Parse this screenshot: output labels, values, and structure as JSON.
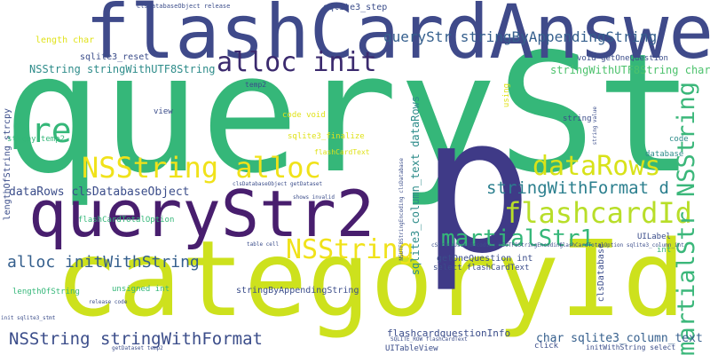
{
  "word_cloud": {
    "palette": {
      "navy": "#3b4d8a",
      "indigo": "#3f3a87",
      "purple": "#481e6e",
      "teal": "#2e8c8a",
      "blue": "#355f8d",
      "green": "#35b779",
      "lime": "#cde11d",
      "yellow": "#f0e21a",
      "olive": "#b8de29"
    },
    "words": [
      {
        "text": "queryStr",
        "color": "#35b779"
      },
      {
        "text": "categoryId",
        "color": "#cde11d"
      },
      {
        "text": "flashCardAnswer",
        "color": "#3f4a8a"
      },
      {
        "text": "queryStr2",
        "color": "#481e6e"
      },
      {
        "text": "p",
        "color": "#3f3a87"
      },
      {
        "text": "alloc init",
        "color": "#3b2a6e"
      },
      {
        "text": "pre",
        "color": "#35b779"
      },
      {
        "text": "NSString alloc",
        "color": "#f0e21a"
      },
      {
        "text": "dataRows",
        "color": "#d8e219"
      },
      {
        "text": "flashcardId",
        "color": "#b8de29"
      },
      {
        "text": "stringWithFormat d",
        "color": "#2b7f8e"
      },
      {
        "text": "martialStr1",
        "color": "#35b779"
      },
      {
        "text": "martialStr NSString",
        "color": "#3bb77a"
      },
      {
        "text": "NSString",
        "color": "#f0e21a"
      },
      {
        "text": "alloc initWithString",
        "color": "#355f8d"
      },
      {
        "text": "NSString stringWithFormat",
        "color": "#3b4d8a"
      },
      {
        "text": "NSString stringWithUTF8String",
        "color": "#2e8c8a"
      },
      {
        "text": "dataRows clsDatabaseObject",
        "color": "#3b4d8a"
      },
      {
        "text": "queryStr stringByAppendingString",
        "color": "#355f8d"
      },
      {
        "text": "stringWithUTF8String char",
        "color": "#4cc26c"
      },
      {
        "text": "sqlite3_column_text dataRows",
        "color": "#2e8c8a"
      },
      {
        "text": "char sqlite3_column_text",
        "color": "#355f8d"
      },
      {
        "text": "flashcardquestionInfo",
        "color": "#3b4d8a"
      },
      {
        "text": "stringByAppendingString",
        "color": "#3b4d8a"
      },
      {
        "text": "getOneQuestion int",
        "color": "#3b4d8a"
      },
      {
        "text": "lengthOfString strcpy",
        "color": "#3b4d8a"
      },
      {
        "text": "length char",
        "color": "#e0e21a"
      },
      {
        "text": "clsDatabaseObject release",
        "color": "#3b4d8a"
      },
      {
        "text": "sqlite3_step",
        "color": "#3b4d8a"
      },
      {
        "text": "sqlite3_reset",
        "color": "#3b4d8a"
      },
      {
        "text": "temp2",
        "color": "#3b4d8a"
      },
      {
        "text": "view",
        "color": "#3b4d8a"
      },
      {
        "text": "code void",
        "color": "#e0e21a"
      },
      {
        "text": "sqlite3_finalize",
        "color": "#e0e21a"
      },
      {
        "text": "flashCardText",
        "color": "#e0e21a"
      },
      {
        "text": "strcpy temp2",
        "color": "#35b779"
      },
      {
        "text": "clsDatabaseObject getDataset",
        "color": "#3b4d8a"
      },
      {
        "text": "shows invalid",
        "color": "#3b4d8a"
      },
      {
        "text": "flashCardTotalOption",
        "color": "#35b779"
      },
      {
        "text": "table cell",
        "color": "#3b4d8a"
      },
      {
        "text": "lengthOfString",
        "color": "#35b779"
      },
      {
        "text": "unsigned int",
        "color": "#35b779"
      },
      {
        "text": "release code",
        "color": "#3b4d8a"
      },
      {
        "text": "init sqlite3_stmt",
        "color": "#3b4d8a"
      },
      {
        "text": "void getOneQuestion",
        "color": "#3b4d8a"
      },
      {
        "text": "string",
        "color": "#3b4d8a"
      },
      {
        "text": "code",
        "color": "#2e8c8a"
      },
      {
        "text": "database",
        "color": "#2e8c8a"
      },
      {
        "text": "UILabel",
        "color": "#3b4d8a"
      },
      {
        "text": "int",
        "color": "#35b779"
      },
      {
        "text": "select flashCardText",
        "color": "#3b4d8a"
      },
      {
        "text": "clsDatabase",
        "color": "#3b4d8a"
      },
      {
        "text": "UITableView",
        "color": "#3b4d8a"
      },
      {
        "text": "click",
        "color": "#3b4d8a"
      },
      {
        "text": "initWithString select",
        "color": "#3b4d8a"
      },
      {
        "text": "SQLITE_ROW flashCardText",
        "color": "#3b4d8a"
      },
      {
        "text": "getDataset temp2",
        "color": "#3b4d8a"
      },
      {
        "text": "NSUTF8StringEncoding clsDatabase",
        "color": "#3b4d8a"
      },
      {
        "text": "cStringUsingEncoding NSUTF8StringEncoding",
        "color": "#3b4d8a"
      },
      {
        "text": "flashCardTotalOption sqlite3_column_int",
        "color": "#3b4d8a"
      },
      {
        "text": "using",
        "color": "#e0e21a"
      },
      {
        "text": "string value",
        "color": "#3b4d8a"
      }
    ]
  }
}
